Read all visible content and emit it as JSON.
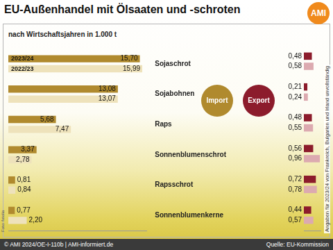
{
  "logo": "AMI",
  "photo_credit": "Foto: fotolia",
  "note": "Angaben für 2023/24 von Frankreich, Bulgarien und Irland unvollständig",
  "footer": "© AMI 2024/OE-I-110b | AMI-informiert.de",
  "source": "Quelle: EU-Kommission",
  "chart_data": [
    {
      "type": "bar",
      "orientation": "horizontal",
      "title": "EU-Außenhandel mit Ölsaaten und -schroten",
      "subtitle": "nach Wirtschaftsjahren in 1.000 t",
      "annotation": "Import",
      "categories": [
        "Sojaschrot",
        "Sojabohnen",
        "Raps",
        "Sonnenblumenschrot",
        "Rapsschrot",
        "Sonnenblumenkerne"
      ],
      "series": [
        {
          "name": "2023/24",
          "color": "#b08a2e",
          "values": [
            15.7,
            13.08,
            5.68,
            3.37,
            0.81,
            0.77
          ],
          "value_labels": [
            "15,70",
            "13,08",
            "5,68",
            "3,37",
            "0,81",
            "0,77"
          ]
        },
        {
          "name": "2022/23",
          "color": "#eee2bb",
          "values": [
            15.99,
            13.07,
            7.47,
            2.78,
            0.84,
            2.2
          ],
          "value_labels": [
            "15,99",
            "13,07",
            "7,47",
            "2,78",
            "0,84",
            "2,20"
          ]
        }
      ],
      "xlim": [
        0,
        16.5
      ],
      "grid": false,
      "data_labels": true,
      "tick_labels": "y"
    },
    {
      "type": "bar",
      "orientation": "horizontal",
      "annotation": "Export",
      "series": [
        {
          "name": "2023/24",
          "color": "#8c1c2c",
          "values": [
            0.48,
            0.21,
            0.48,
            0.56,
            0.72,
            0.44
          ],
          "value_labels": [
            "0,48",
            "0,21",
            "0,48",
            "0,56",
            "0,72",
            "0,44"
          ]
        },
        {
          "name": "2022/23",
          "color": "#dcaab0",
          "values": [
            0.58,
            0.24,
            0.55,
            0.96,
            0.78,
            0.57
          ],
          "value_labels": [
            "0,58",
            "0,24",
            "0,55",
            "0,96",
            "0,78",
            "0,57"
          ]
        }
      ],
      "xlim": [
        0,
        1
      ],
      "grid": false,
      "data_labels": true,
      "tick_labels": false
    }
  ]
}
